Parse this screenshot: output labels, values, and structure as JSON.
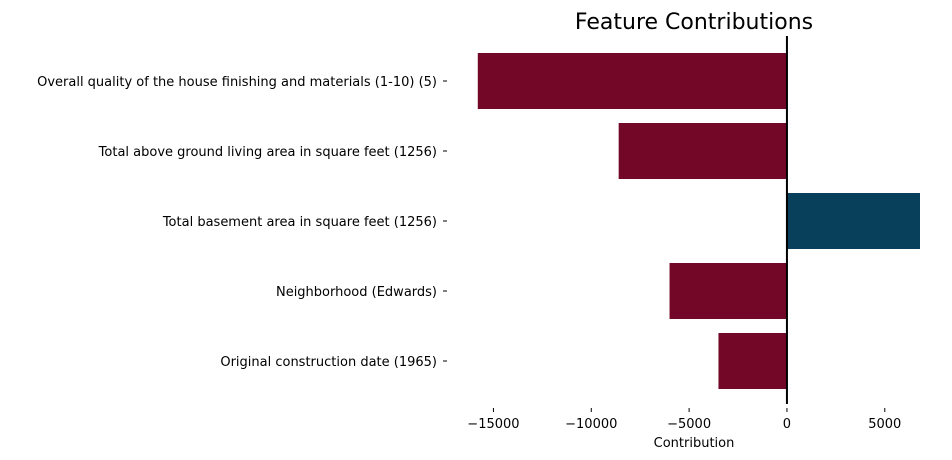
{
  "chart_data": {
    "type": "bar",
    "orientation": "horizontal",
    "title": "Feature Contributions",
    "xlabel": "Contribution",
    "ylabel": "",
    "categories": [
      "Overall quality of the house finishing and materials (1-10) (5)",
      "Total above ground living area in square feet (1256)",
      "Total basement area in square feet (1256)",
      "Neighborhood (Edwards)",
      "Original construction date (1965)"
    ],
    "values": [
      -15800,
      -8600,
      6800,
      -6000,
      -3500
    ],
    "xlim": [
      -16300,
      6800
    ],
    "xticks": [
      -15000,
      -10000,
      -5000,
      0,
      5000
    ],
    "xtick_labels": [
      "−15000",
      "−10000",
      "−5000",
      "0",
      "5000"
    ],
    "grid": false,
    "colors": {
      "negative": "#730727",
      "positive": "#08405c",
      "zero_line": "#000000"
    }
  }
}
